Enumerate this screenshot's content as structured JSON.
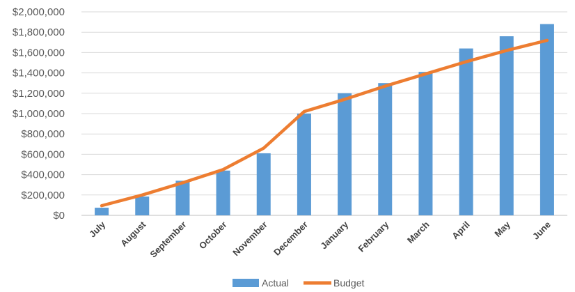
{
  "chart_data": {
    "type": "bar",
    "categories": [
      "July",
      "August",
      "September",
      "October",
      "November",
      "December",
      "January",
      "February",
      "March",
      "April",
      "May",
      "June"
    ],
    "series": [
      {
        "name": "Actual",
        "type": "bar",
        "color": "#5b9bd5",
        "values": [
          75000,
          185000,
          340000,
          440000,
          610000,
          1000000,
          1200000,
          1300000,
          1410000,
          1640000,
          1760000,
          1880000
        ]
      },
      {
        "name": "Budget",
        "type": "line",
        "color": "#ed7d31",
        "values": [
          95000,
          200000,
          320000,
          450000,
          660000,
          1020000,
          1140000,
          1270000,
          1390000,
          1510000,
          1620000,
          1720000
        ]
      }
    ],
    "ylim": [
      0,
      2000000
    ],
    "yticks": [
      "$0",
      "$200,000",
      "$400,000",
      "$600,000",
      "$800,000",
      "$1,000,000",
      "$1,200,000",
      "$1,400,000",
      "$1,600,000",
      "$1,800,000",
      "$2,000,000"
    ],
    "ytick_step": 200000,
    "grid": true,
    "legend_position": "bottom",
    "title": "",
    "xlabel": "",
    "ylabel": ""
  }
}
